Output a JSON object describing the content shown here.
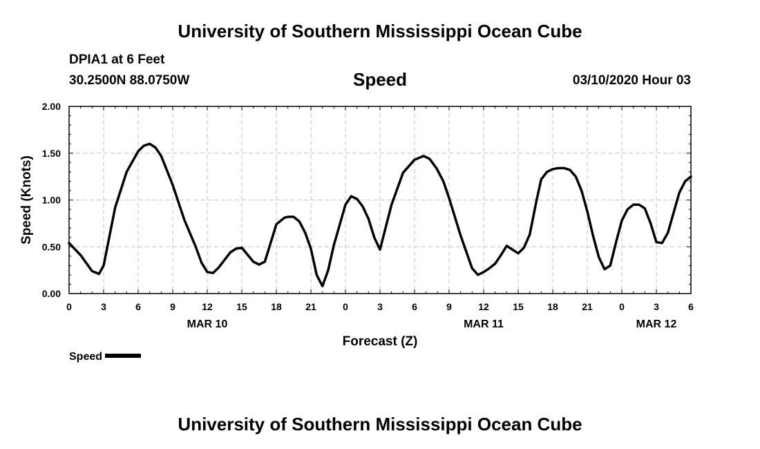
{
  "header": {
    "title": "University of Southern Mississippi Ocean Cube",
    "station": "DPIA1 at 6 Feet",
    "coords": "30.2500N 88.0750W",
    "date": "03/10/2020 Hour 03"
  },
  "footer": {
    "title": "University of Southern Mississippi Ocean Cube"
  },
  "chart_data": {
    "type": "line",
    "title": "Speed",
    "xlabel": "Forecast (Z)",
    "ylabel": "Speed (Knots)",
    "ylim": [
      0,
      2
    ],
    "xlim": [
      0,
      54
    ],
    "grid": true,
    "legend": "bottom-left",
    "x_ticks": [
      0,
      3,
      6,
      9,
      12,
      15,
      18,
      21,
      24,
      27,
      30,
      33,
      36,
      39,
      42,
      45,
      48,
      51,
      54
    ],
    "x_tick_labels": [
      "0",
      "3",
      "6",
      "9",
      "12",
      "15",
      "18",
      "21",
      "0",
      "3",
      "6",
      "9",
      "12",
      "15",
      "18",
      "21",
      "0",
      "3",
      "6"
    ],
    "y_ticks": [
      0,
      0.5,
      1.0,
      1.5,
      2.0
    ],
    "y_tick_labels": [
      "0.00",
      "0.50",
      "1.00",
      "1.50",
      "2.00"
    ],
    "date_labels": [
      {
        "x": 12,
        "label": "MAR 10"
      },
      {
        "x": 36,
        "label": "MAR 11"
      },
      {
        "x": 51,
        "label": "MAR 12"
      }
    ],
    "series": [
      {
        "name": "Speed",
        "color": "#000000",
        "x": [
          0,
          1,
          2,
          2.6,
          3,
          4,
          5,
          6,
          6.5,
          7,
          7.5,
          8,
          9,
          10,
          11,
          11.5,
          12,
          12.5,
          13,
          14,
          14.5,
          15,
          16,
          16.5,
          17,
          18,
          18.7,
          19,
          19.5,
          20,
          20.5,
          21,
          21.5,
          22,
          22.5,
          23,
          24,
          24.5,
          25,
          25.5,
          26,
          26.5,
          27,
          28,
          29,
          30,
          30.8,
          31.3,
          31.9,
          32.5,
          33,
          34,
          35,
          35.5,
          36,
          36.5,
          37,
          37.5,
          38,
          39,
          39.5,
          40,
          40.6,
          41,
          41.5,
          42,
          42.5,
          43,
          43.5,
          44,
          44.5,
          45,
          45.5,
          46,
          46.5,
          47,
          47.5,
          48,
          48.5,
          49,
          49.5,
          50,
          50.5,
          51,
          51.5,
          52,
          53,
          53.5,
          54
        ],
        "values": [
          0.54,
          0.41,
          0.24,
          0.21,
          0.3,
          0.92,
          1.3,
          1.52,
          1.58,
          1.6,
          1.56,
          1.47,
          1.16,
          0.79,
          0.5,
          0.33,
          0.23,
          0.22,
          0.28,
          0.44,
          0.48,
          0.49,
          0.34,
          0.31,
          0.34,
          0.74,
          0.81,
          0.82,
          0.82,
          0.77,
          0.65,
          0.48,
          0.2,
          0.08,
          0.25,
          0.52,
          0.95,
          1.04,
          1.01,
          0.93,
          0.8,
          0.6,
          0.47,
          0.95,
          1.29,
          1.43,
          1.47,
          1.44,
          1.34,
          1.2,
          1.02,
          0.62,
          0.27,
          0.2,
          0.23,
          0.27,
          0.32,
          0.41,
          0.51,
          0.43,
          0.49,
          0.63,
          1.0,
          1.22,
          1.3,
          1.33,
          1.34,
          1.34,
          1.32,
          1.25,
          1.1,
          0.88,
          0.62,
          0.39,
          0.26,
          0.3,
          0.55,
          0.78,
          0.9,
          0.95,
          0.95,
          0.91,
          0.75,
          0.55,
          0.54,
          0.65,
          1.08,
          1.2,
          1.25
        ]
      }
    ]
  },
  "legend": {
    "label": "Speed"
  }
}
